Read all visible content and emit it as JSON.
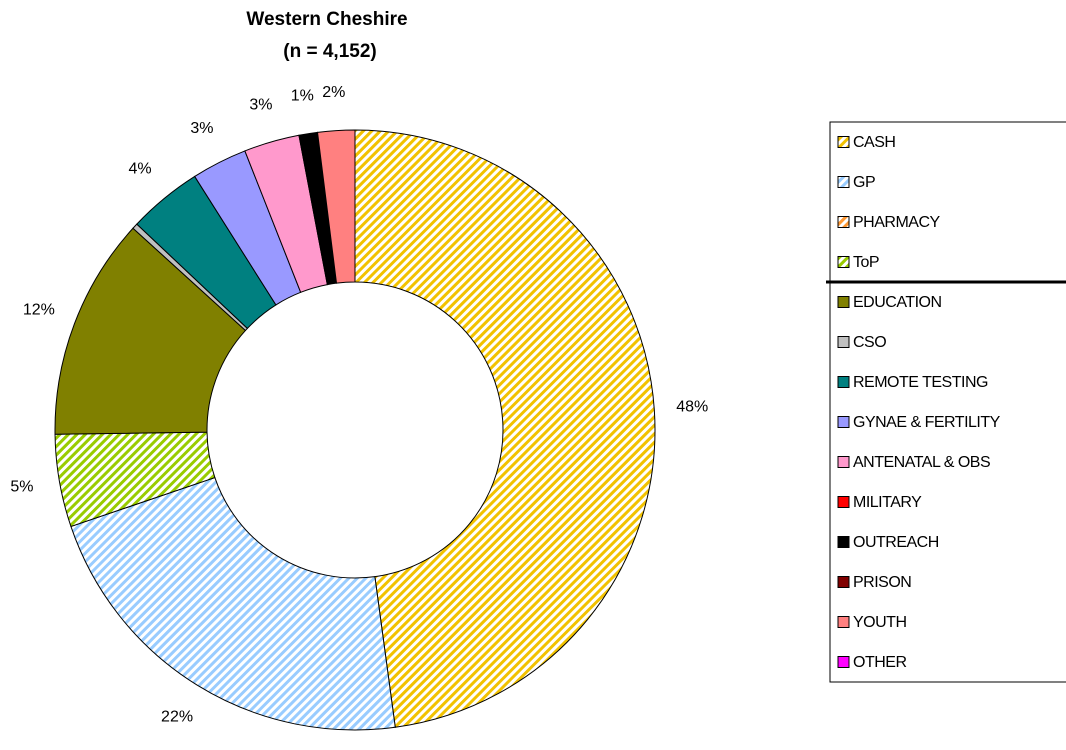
{
  "chart_data": {
    "type": "donut",
    "title": "Western Cheshire",
    "subtitle": "(n = 4,152)",
    "categories": [
      "CASH",
      "GP",
      "PHARMACY",
      "ToP",
      "EDUCATION",
      "CSO",
      "REMOTE TESTING",
      "GYNAE & FERTILITY",
      "ANTENATAL & OBS",
      "MILITARY",
      "OUTREACH",
      "PRISON",
      "YOUTH",
      "OTHER"
    ],
    "values": [
      48,
      22,
      0,
      5,
      12,
      0.3,
      4,
      3,
      3,
      0,
      1,
      0,
      2,
      0
    ],
    "value_labels": [
      "48%",
      "22%",
      null,
      "5%",
      "12%",
      null,
      "4%",
      "3%",
      "3%",
      null,
      "1%",
      null,
      "2%",
      null
    ],
    "colors": [
      "#f2c200",
      "#99ccff",
      "#ff9933",
      "#99cc00",
      "#808000",
      "#c0c0c0",
      "#008080",
      "#9999ff",
      "#ff99cc",
      "#ff0000",
      "#000000",
      "#800000",
      "#ff8080",
      "#ff00ff"
    ],
    "hatched": [
      true,
      true,
      true,
      true,
      false,
      false,
      false,
      false,
      false,
      false,
      false,
      false,
      false,
      false
    ],
    "legend": "right"
  }
}
